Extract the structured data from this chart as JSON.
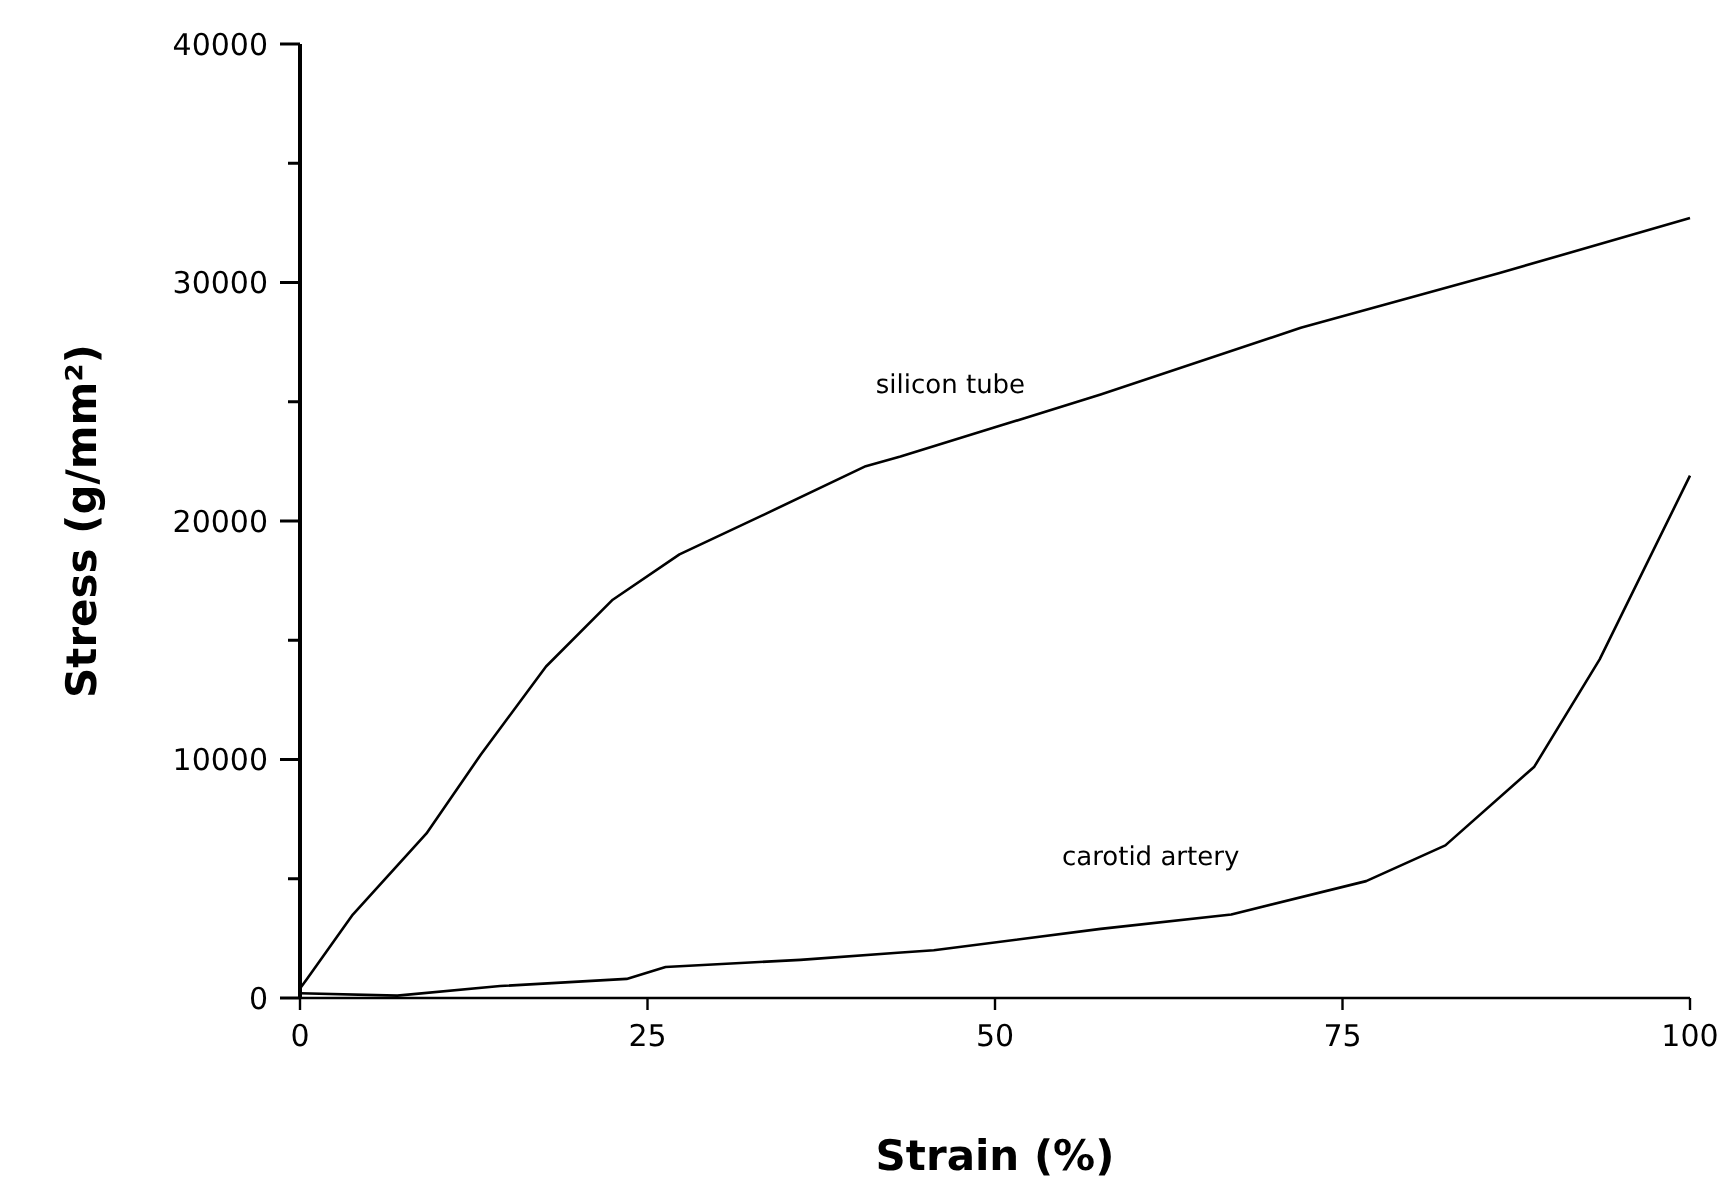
{
  "chart_data": {
    "type": "line",
    "xlabel": "Strain (%)",
    "ylabel": "Stress (g/mm²)",
    "xlim": [
      0,
      100
    ],
    "xticks": [
      0,
      25,
      50,
      75,
      100
    ],
    "ylim": [
      0,
      40000
    ],
    "yticks": [
      0,
      {
        "value": 5000,
        "label": null
      },
      10000,
      {
        "value": 15000,
        "label": null
      },
      20000,
      {
        "value": 25000,
        "label": null
      },
      30000,
      {
        "value": 35000,
        "label": null
      },
      40000
    ],
    "grid": false,
    "marker": "none",
    "line_style": "solid",
    "series": [
      {
        "name": "silicon tube",
        "color": "#000000",
        "x": [
          0,
          0.5,
          3.8,
          9.1,
          13,
          17.7,
          22.5,
          27.3,
          33.5,
          40.7,
          43.2,
          50.4,
          57.6,
          72,
          86.3,
          100
        ],
        "values": [
          400,
          800,
          3500,
          6900,
          10200,
          13900,
          16700,
          18600,
          20300,
          22300,
          22700,
          24000,
          25300,
          28100,
          30400,
          32700
        ]
      },
      {
        "name": "carotid artery",
        "color": "#000000",
        "x": [
          0,
          7,
          14.4,
          23.5,
          26.3,
          36,
          43,
          45.6,
          57.6,
          67,
          76.7,
          82.4,
          88.8,
          93.5,
          100
        ],
        "values": [
          200,
          100,
          500,
          800,
          1300,
          1600,
          1900,
          2000,
          2900,
          3500,
          4900,
          6400,
          9700,
          14200,
          21900
        ]
      }
    ]
  }
}
